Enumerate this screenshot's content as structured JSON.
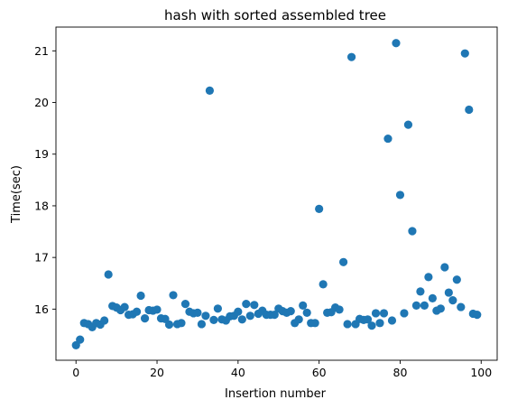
{
  "chart_data": {
    "type": "scatter",
    "title": "hash with sorted assembled tree",
    "xlabel": "Insertion number",
    "ylabel": "Time(sec)",
    "xlim": [
      -4.95,
      103.95
    ],
    "ylim": [
      15.01,
      21.46
    ],
    "xticks": [
      0,
      20,
      40,
      60,
      80,
      100
    ],
    "yticks": [
      16,
      17,
      18,
      19,
      20,
      21
    ],
    "grid": false,
    "point_color": "#1f77b4",
    "x": [
      0,
      1,
      2,
      3,
      4,
      5,
      6,
      7,
      8,
      9,
      10,
      11,
      12,
      13,
      14,
      15,
      16,
      17,
      18,
      19,
      20,
      21,
      22,
      23,
      24,
      25,
      26,
      27,
      28,
      29,
      30,
      31,
      32,
      33,
      34,
      35,
      36,
      37,
      38,
      39,
      40,
      41,
      42,
      43,
      44,
      45,
      46,
      47,
      48,
      49,
      50,
      51,
      52,
      53,
      54,
      55,
      56,
      57,
      58,
      59,
      60,
      61,
      62,
      63,
      64,
      65,
      66,
      67,
      68,
      69,
      70,
      71,
      72,
      73,
      74,
      75,
      76,
      77,
      78,
      79,
      80,
      81,
      82,
      83,
      84,
      85,
      86,
      87,
      88,
      89,
      90,
      91,
      92,
      93,
      94,
      95,
      96,
      97,
      98,
      99
    ],
    "y": [
      15.3,
      15.41,
      15.73,
      15.71,
      15.65,
      15.73,
      15.7,
      15.78,
      16.67,
      16.06,
      16.03,
      15.98,
      16.04,
      15.89,
      15.9,
      15.95,
      16.26,
      15.82,
      15.98,
      15.97,
      15.99,
      15.82,
      15.81,
      15.7,
      16.27,
      15.71,
      15.73,
      16.1,
      15.95,
      15.92,
      15.93,
      15.71,
      15.87,
      20.23,
      15.79,
      16.01,
      15.8,
      15.78,
      15.86,
      15.87,
      15.95,
      15.8,
      16.1,
      15.87,
      16.08,
      15.91,
      15.97,
      15.89,
      15.89,
      15.89,
      16.01,
      15.96,
      15.93,
      15.96,
      15.73,
      15.8,
      16.07,
      15.93,
      15.73,
      15.73,
      17.94,
      16.48,
      15.93,
      15.94,
      16.03,
      15.99,
      16.91,
      15.71,
      20.88,
      15.71,
      15.81,
      15.79,
      15.8,
      15.68,
      15.92,
      15.73,
      15.92,
      19.3,
      15.78,
      21.15,
      18.21,
      15.92,
      19.57,
      17.51,
      16.07,
      16.34,
      16.07,
      16.62,
      16.21,
      15.97,
      16.01,
      16.81,
      16.32,
      16.17,
      16.57,
      16.04,
      20.95,
      19.86,
      15.91,
      15.89
    ]
  }
}
